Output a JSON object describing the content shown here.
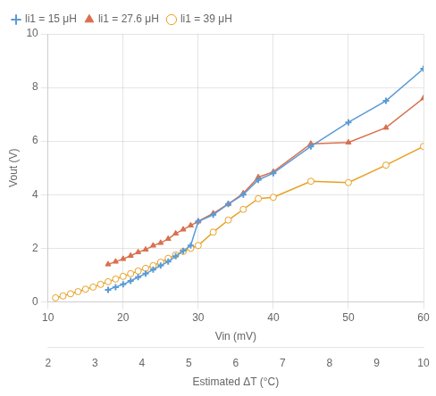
{
  "chart_data": {
    "type": "line",
    "xlabel": "Vin (mV)",
    "ylabel": "Vout (V)",
    "x2label": "Estimated ΔT (°C)",
    "xlim": [
      10,
      60
    ],
    "ylim": [
      0,
      10
    ],
    "xticks": [
      10,
      20,
      30,
      40,
      50,
      60
    ],
    "yticks": [
      0,
      2,
      4,
      6,
      8,
      10
    ],
    "x2lim": [
      10,
      60
    ],
    "x2ticks": [
      {
        "value": 10,
        "label": "2"
      },
      {
        "value": 16.25,
        "label": "3"
      },
      {
        "value": 22.5,
        "label": "4"
      },
      {
        "value": 28.75,
        "label": "5"
      },
      {
        "value": 35,
        "label": "6"
      },
      {
        "value": 41.25,
        "label": "7"
      },
      {
        "value": 47.5,
        "label": "8"
      },
      {
        "value": 53.75,
        "label": "9"
      },
      {
        "value": 60,
        "label": "10"
      }
    ],
    "grid": true,
    "legend": "upper left",
    "series": [
      {
        "name": "li1 = 15 μH",
        "color": "#5b9bd5",
        "marker": "plus",
        "x": [
          18,
          19,
          20,
          21,
          22,
          23,
          24,
          25,
          26,
          27,
          28,
          29,
          30,
          32,
          34,
          36,
          38,
          40,
          45,
          50,
          55,
          60
        ],
        "values": [
          0.45,
          0.55,
          0.65,
          0.78,
          0.92,
          1.05,
          1.2,
          1.35,
          1.5,
          1.7,
          1.9,
          2.1,
          3.0,
          3.25,
          3.65,
          4.0,
          4.55,
          4.8,
          5.8,
          6.7,
          7.5,
          8.7
        ]
      },
      {
        "name": "li1 = 27.6 μH",
        "color": "#d9704f",
        "marker": "triangle",
        "x": [
          18,
          19,
          20,
          21,
          22,
          23,
          24,
          25,
          26,
          27,
          28,
          29,
          30,
          32,
          34,
          36,
          38,
          40,
          45,
          50,
          55,
          60
        ],
        "values": [
          1.4,
          1.5,
          1.6,
          1.72,
          1.85,
          1.95,
          2.1,
          2.2,
          2.35,
          2.55,
          2.7,
          2.85,
          3.0,
          3.3,
          3.65,
          4.05,
          4.65,
          4.85,
          5.9,
          5.95,
          6.5,
          7.6
        ]
      },
      {
        "name": "li1 = 39 μH",
        "color": "#e8a020",
        "marker": "circle",
        "x": [
          11,
          12,
          13,
          14,
          15,
          16,
          17,
          18,
          19,
          20,
          21,
          22,
          23,
          24,
          25,
          26,
          27,
          28,
          29,
          30,
          32,
          34,
          36,
          38,
          40,
          45,
          50,
          55,
          60
        ],
        "values": [
          0.15,
          0.22,
          0.3,
          0.38,
          0.47,
          0.55,
          0.65,
          0.75,
          0.85,
          0.95,
          1.05,
          1.15,
          1.25,
          1.35,
          1.48,
          1.62,
          1.75,
          1.88,
          2.0,
          2.1,
          2.6,
          3.05,
          3.45,
          3.85,
          3.9,
          4.5,
          4.45,
          5.1,
          5.8
        ]
      }
    ]
  }
}
